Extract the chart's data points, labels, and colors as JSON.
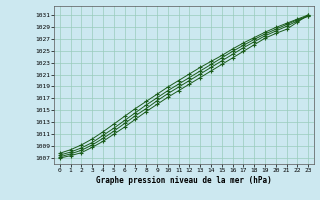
{
  "title": "Graphe pression niveau de la mer (hPa)",
  "background_color": "#cce8f0",
  "plot_bg_color": "#cce8f0",
  "grid_color": "#99ccbb",
  "line_color": "#1a5c1a",
  "marker_color": "#1a5c1a",
  "xlim": [
    -0.5,
    23.5
  ],
  "ylim": [
    1006.0,
    1032.5
  ],
  "yticks": [
    1007,
    1009,
    1011,
    1013,
    1015,
    1017,
    1019,
    1021,
    1023,
    1025,
    1027,
    1029,
    1031
  ],
  "xticks": [
    0,
    1,
    2,
    3,
    4,
    5,
    6,
    7,
    8,
    9,
    10,
    11,
    12,
    13,
    14,
    15,
    16,
    17,
    18,
    19,
    20,
    21,
    22,
    23
  ],
  "series": [
    [
      1007.0,
      1007.4,
      1007.9,
      1008.8,
      1009.8,
      1011.0,
      1012.2,
      1013.5,
      1014.8,
      1016.0,
      1017.2,
      1018.3,
      1019.4,
      1020.5,
      1021.6,
      1022.7,
      1023.8,
      1024.9,
      1026.0,
      1027.1,
      1027.9,
      1028.6,
      1029.8,
      1031.0
    ],
    [
      1007.2,
      1007.7,
      1008.3,
      1009.2,
      1010.3,
      1011.5,
      1012.8,
      1014.1,
      1015.3,
      1016.6,
      1017.8,
      1018.9,
      1020.0,
      1021.1,
      1022.2,
      1023.3,
      1024.4,
      1025.5,
      1026.5,
      1027.5,
      1028.3,
      1029.1,
      1030.0,
      1030.8
    ],
    [
      1007.5,
      1008.0,
      1008.7,
      1009.6,
      1010.8,
      1012.0,
      1013.3,
      1014.6,
      1015.9,
      1017.1,
      1018.3,
      1019.4,
      1020.5,
      1021.6,
      1022.7,
      1023.8,
      1024.9,
      1025.9,
      1026.9,
      1027.8,
      1028.6,
      1029.4,
      1030.2,
      1030.8
    ],
    [
      1007.8,
      1008.4,
      1009.2,
      1010.2,
      1011.4,
      1012.7,
      1014.0,
      1015.3,
      1016.5,
      1017.7,
      1018.9,
      1020.0,
      1021.1,
      1022.2,
      1023.2,
      1024.2,
      1025.3,
      1026.3,
      1027.2,
      1028.1,
      1028.9,
      1029.6,
      1030.3,
      1031.0
    ]
  ]
}
